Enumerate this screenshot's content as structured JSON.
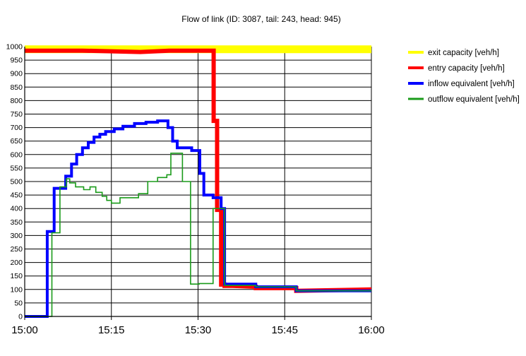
{
  "chart_data": {
    "type": "line",
    "title": "Flow of link (ID: 3087, tail: 243, head: 945)",
    "xlabel": "",
    "ylabel": "",
    "x_ticks": [
      "15:00",
      "15:15",
      "15:30",
      "15:45",
      "16:00"
    ],
    "xlim_minutes": [
      0,
      60
    ],
    "ylim": [
      0,
      1000
    ],
    "y_ticks": [
      0,
      50,
      100,
      150,
      200,
      250,
      300,
      350,
      400,
      450,
      500,
      550,
      600,
      650,
      700,
      750,
      800,
      850,
      900,
      950,
      1000
    ],
    "grid": true,
    "legend_position": "right",
    "series": [
      {
        "name": "exit capacity [veh/h]",
        "color": "#ffff00",
        "x": [
          0,
          60
        ],
        "y": [
          990,
          990
        ]
      },
      {
        "name": "entry capacity [veh/h]",
        "color": "#ff0000",
        "x": [
          0,
          10,
          20,
          25,
          32.7,
          32.7,
          33.3,
          33.3,
          34.0,
          34.0,
          34.6,
          34.6,
          36,
          40,
          40,
          47,
          47,
          60
        ],
        "y": [
          985,
          985,
          980,
          985,
          985,
          725,
          725,
          395,
          395,
          118,
          118,
          113,
          113,
          110,
          105,
          105,
          95,
          100
        ]
      },
      {
        "name": "inflow equivalent [veh/h]",
        "color": "#0000ff",
        "x": [
          0,
          3.9,
          3.9,
          5.1,
          5.1,
          7.1,
          7.1,
          8.1,
          8.1,
          9.0,
          9.0,
          10.0,
          10.0,
          11.0,
          11.0,
          12.0,
          12.0,
          13.0,
          13.0,
          14.0,
          14.0,
          15.5,
          15.5,
          17.0,
          17.0,
          19.0,
          19.0,
          21.0,
          21.0,
          23.0,
          23.0,
          24.8,
          24.8,
          25.6,
          25.6,
          26.4,
          26.4,
          28.9,
          28.9,
          30.3,
          30.3,
          31.0,
          31.0,
          32.6,
          32.6,
          34.0,
          34.0,
          34.6,
          34.6,
          40.0,
          40.0,
          47.0,
          47.0,
          60.0
        ],
        "y": [
          0,
          0,
          315,
          315,
          475,
          475,
          520,
          520,
          565,
          565,
          600,
          600,
          625,
          625,
          645,
          645,
          665,
          665,
          675,
          675,
          685,
          685,
          695,
          695,
          705,
          705,
          715,
          715,
          720,
          720,
          725,
          725,
          700,
          700,
          650,
          650,
          625,
          625,
          615,
          615,
          530,
          530,
          450,
          450,
          440,
          440,
          400,
          400,
          120,
          120,
          110,
          110,
          95,
          95
        ]
      },
      {
        "name": "outflow equivalent [veh/h]",
        "color": "#1a9b1a",
        "x": [
          0,
          4.7,
          4.7,
          6.1,
          6.1,
          7.2,
          7.2,
          7.8,
          7.8,
          8.8,
          8.8,
          10.2,
          10.2,
          11.3,
          11.3,
          12.3,
          12.3,
          13.4,
          13.4,
          14.2,
          14.2,
          15.0,
          15.0,
          16.5,
          16.5,
          19.7,
          19.7,
          21.3,
          21.3,
          23.0,
          23.0,
          24.6,
          24.6,
          25.3,
          25.3,
          27.3,
          27.3,
          28.7,
          28.7,
          30.2,
          30.2,
          31.0,
          31.0,
          32.6,
          32.6,
          34.0,
          34.0,
          34.6,
          34.6,
          40.0,
          40.0,
          47.0,
          47.0,
          60.0
        ],
        "y": [
          0,
          0,
          310,
          310,
          480,
          480,
          510,
          510,
          495,
          495,
          480,
          480,
          470,
          470,
          480,
          480,
          460,
          460,
          445,
          445,
          430,
          430,
          420,
          420,
          440,
          440,
          455,
          455,
          500,
          500,
          515,
          515,
          525,
          525,
          605,
          605,
          500,
          500,
          120,
          120,
          122,
          122,
          122,
          122,
          400,
          400,
          400,
          400,
          115,
          115,
          110,
          110,
          95,
          95
        ]
      }
    ]
  }
}
